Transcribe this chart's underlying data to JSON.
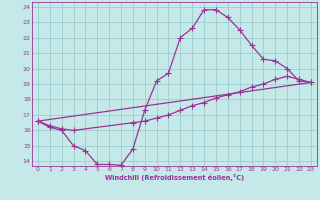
{
  "xlabel": "Windchill (Refroidissement éolien,°C)",
  "xlim": [
    -0.5,
    23.5
  ],
  "ylim": [
    13.7,
    24.3
  ],
  "xticks": [
    0,
    1,
    2,
    3,
    4,
    5,
    6,
    7,
    8,
    9,
    10,
    11,
    12,
    13,
    14,
    15,
    16,
    17,
    18,
    19,
    20,
    21,
    22,
    23
  ],
  "yticks": [
    14,
    15,
    16,
    17,
    18,
    19,
    20,
    21,
    22,
    23,
    24
  ],
  "bg_color": "#c5e8e8",
  "grid_color": "#96c8c8",
  "line_color": "#993399",
  "markersize": 2.5,
  "linewidth": 0.9,
  "line1_x": [
    0,
    1,
    2,
    3,
    4,
    5,
    6,
    7,
    8,
    9,
    10,
    11,
    12,
    13,
    14,
    15,
    16,
    17,
    18,
    19,
    20,
    21,
    22,
    23
  ],
  "line1_y": [
    16.6,
    16.2,
    16.0,
    15.0,
    14.7,
    13.8,
    13.8,
    13.75,
    14.8,
    17.3,
    19.2,
    19.7,
    22.0,
    22.6,
    23.8,
    23.8,
    23.3,
    22.5,
    21.5,
    20.6,
    20.5,
    20.0,
    19.2,
    19.1
  ],
  "line2_x": [
    0,
    1,
    2,
    3,
    8,
    9,
    10,
    11,
    12,
    13,
    14,
    15,
    16,
    17,
    18,
    19,
    20,
    21,
    22,
    23
  ],
  "line2_y": [
    16.6,
    16.3,
    16.1,
    16.0,
    16.5,
    16.6,
    16.8,
    17.0,
    17.3,
    17.6,
    17.8,
    18.1,
    18.3,
    18.5,
    18.8,
    19.0,
    19.3,
    19.5,
    19.3,
    19.1
  ],
  "line3_x": [
    0,
    23
  ],
  "line3_y": [
    16.6,
    19.1
  ]
}
